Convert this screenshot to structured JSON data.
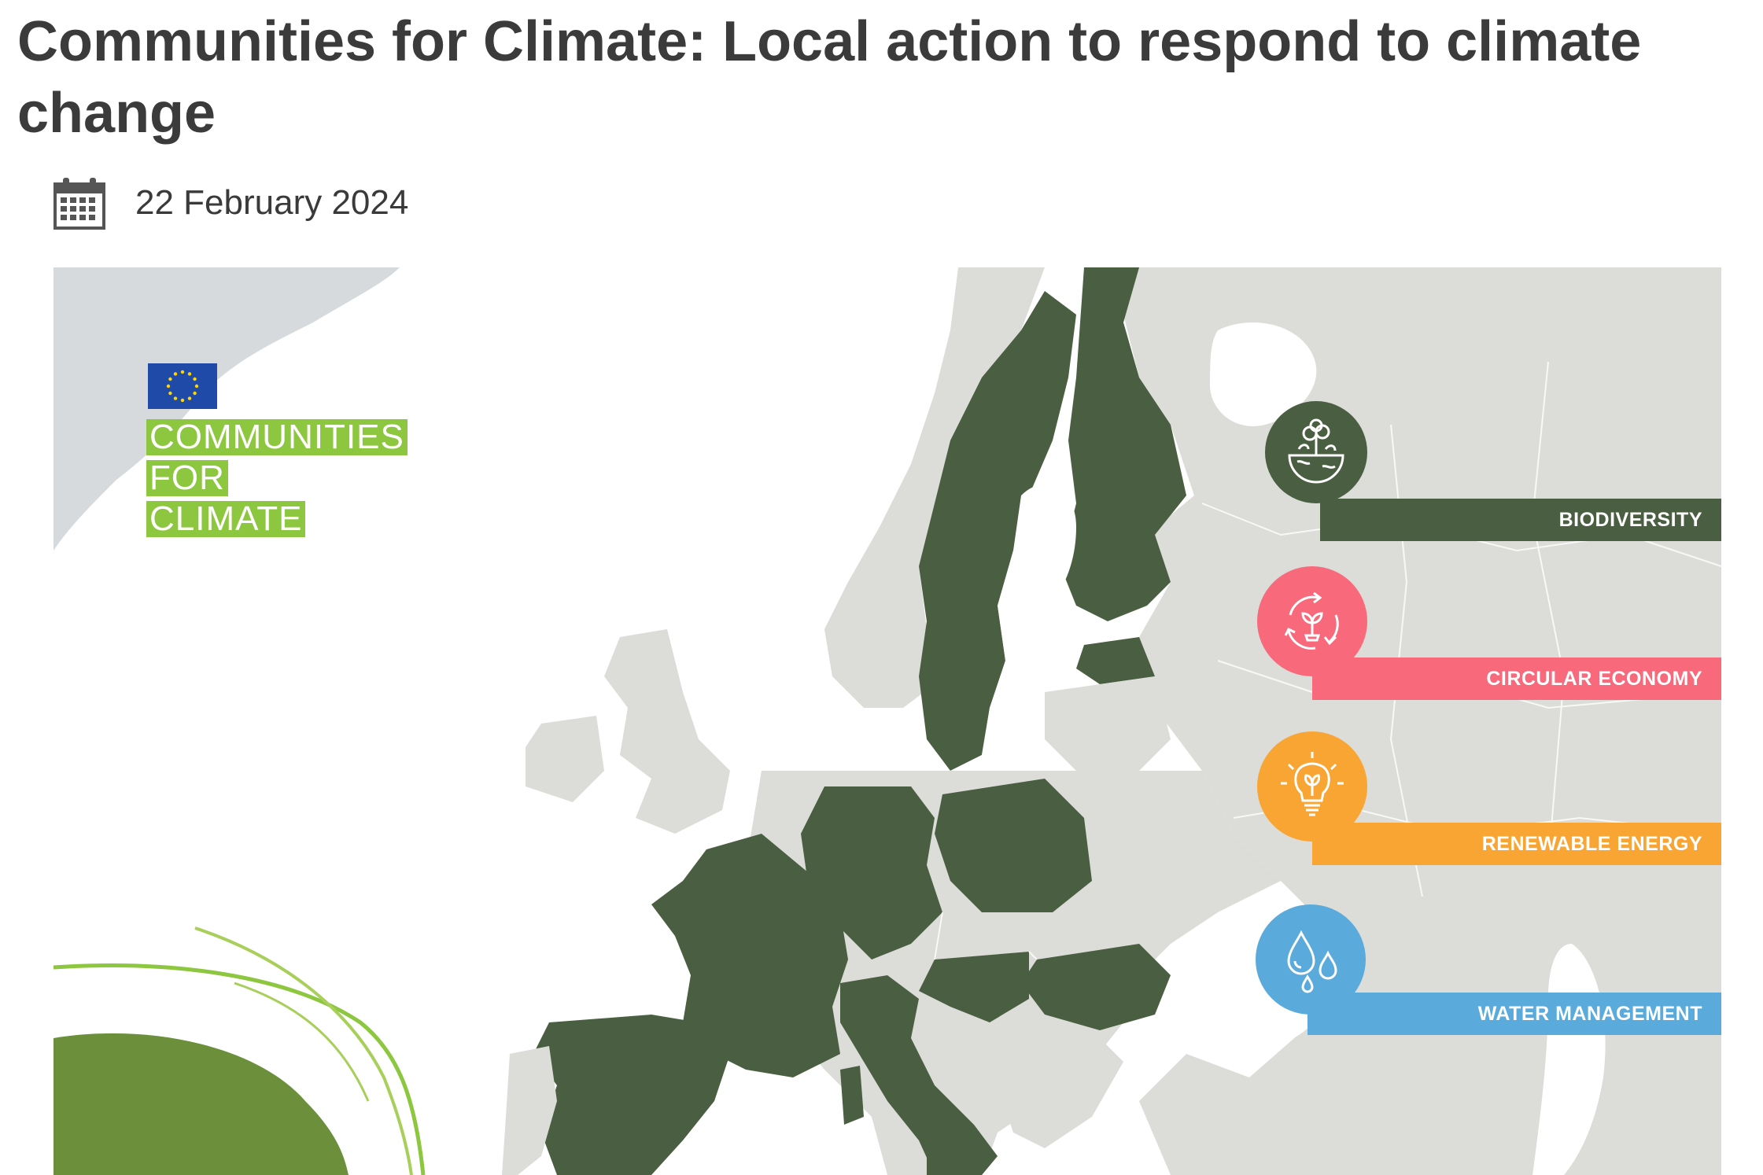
{
  "article": {
    "title": "Communities for Climate: Local action to respond to climate change",
    "date": "22 February 2024",
    "date_icon": "calendar-icon"
  },
  "hero": {
    "logo": {
      "flag_icon": "eu-flag-icon",
      "lines": [
        "COMMUNITIES",
        "FOR",
        "CLIMATE"
      ],
      "color": "#8dc63f"
    },
    "map_colors": {
      "water": "#ffffff",
      "land": "#dcdcd8",
      "highlighted": "#4a5e41",
      "arctic": "#d6dadd"
    },
    "themes": [
      {
        "label": "BIODIVERSITY",
        "color": "#4a5e41",
        "icon": "biodiversity-globe-icon"
      },
      {
        "label": "CIRCULAR ECONOMY",
        "color": "#f7697b",
        "icon": "circular-economy-icon"
      },
      {
        "label": "RENEWABLE ENERGY",
        "color": "#f9a534",
        "icon": "lightbulb-plant-icon"
      },
      {
        "label": "WATER MANAGEMENT",
        "color": "#5aaadc",
        "icon": "water-drops-icon"
      }
    ]
  }
}
